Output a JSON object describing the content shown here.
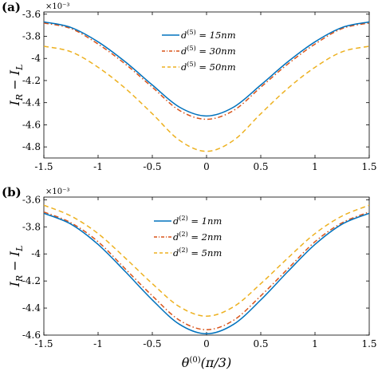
{
  "chart_data": [
    {
      "type": "line",
      "panel_label": "(a)",
      "exponent_label": "×10⁻³",
      "xlabel": "",
      "ylabel": "I_R − I_L",
      "xlim": [
        -1.5,
        1.5
      ],
      "ylim": [
        -4.9,
        -3.58
      ],
      "xticks": [
        "-1.5",
        "-1",
        "-0.5",
        "0",
        "0.5",
        "1",
        "1.5"
      ],
      "yticks": [
        "-3.6",
        "-3.8",
        "-4",
        "-4.2",
        "-4.4",
        "-4.6",
        "-4.8"
      ],
      "ytick_values": [
        -3.6,
        -3.8,
        -4.0,
        -4.2,
        -4.4,
        -4.6,
        -4.8
      ],
      "legend_position": "top-center",
      "grid": false,
      "x": [
        -1.5,
        -1.25,
        -1.0,
        -0.75,
        -0.5,
        -0.25,
        0.0,
        0.25,
        0.5,
        0.75,
        1.0,
        1.25,
        1.5
      ],
      "series": [
        {
          "name": "d^(5) = 15nm",
          "color": "#0072BD",
          "style": "solid",
          "values": [
            -3.67,
            -3.72,
            -3.85,
            -4.03,
            -4.24,
            -4.44,
            -4.52,
            -4.44,
            -4.24,
            -4.03,
            -3.85,
            -3.72,
            -3.67
          ]
        },
        {
          "name": "d^(5) = 30nm",
          "color": "#D95319",
          "style": "dashdot",
          "values": [
            -3.68,
            -3.73,
            -3.87,
            -4.05,
            -4.26,
            -4.47,
            -4.55,
            -4.47,
            -4.26,
            -4.05,
            -3.87,
            -3.73,
            -3.68
          ]
        },
        {
          "name": "d^(5) = 50nm",
          "color": "#EDB120",
          "style": "dashed",
          "values": [
            -3.89,
            -3.94,
            -4.08,
            -4.27,
            -4.5,
            -4.74,
            -4.84,
            -4.74,
            -4.5,
            -4.27,
            -4.08,
            -3.94,
            -3.89
          ]
        }
      ]
    },
    {
      "type": "line",
      "panel_label": "(b)",
      "exponent_label": "×10⁻³",
      "xlabel": "θ^(0) (π/3)",
      "ylabel": "I_R − I_L",
      "xlim": [
        -1.5,
        1.5
      ],
      "ylim": [
        -4.6,
        -3.58
      ],
      "xticks": [
        "-1.5",
        "-1",
        "-0.5",
        "0",
        "0.5",
        "1",
        "1.5"
      ],
      "yticks": [
        "-3.6",
        "-3.8",
        "-4",
        "-4.2",
        "-4.4",
        "-4.6"
      ],
      "ytick_values": [
        -3.6,
        -3.8,
        -4.0,
        -4.2,
        -4.4,
        -4.6
      ],
      "legend_position": "top-center",
      "grid": false,
      "x": [
        -1.5,
        -1.25,
        -1.0,
        -0.75,
        -0.5,
        -0.25,
        0.0,
        0.25,
        0.5,
        0.75,
        1.0,
        1.25,
        1.5
      ],
      "series": [
        {
          "name": "d^(2) = 1nm",
          "color": "#0072BD",
          "style": "solid",
          "values": [
            -3.7,
            -3.78,
            -3.93,
            -4.13,
            -4.34,
            -4.52,
            -4.59,
            -4.52,
            -4.34,
            -4.13,
            -3.93,
            -3.78,
            -3.7
          ]
        },
        {
          "name": "d^(2) = 2nm",
          "color": "#D95319",
          "style": "dashdot",
          "values": [
            -3.69,
            -3.77,
            -3.91,
            -4.11,
            -4.31,
            -4.49,
            -4.56,
            -4.49,
            -4.31,
            -4.11,
            -3.91,
            -3.77,
            -3.69
          ]
        },
        {
          "name": "d^(2) = 5nm",
          "color": "#EDB120",
          "style": "dashed",
          "values": [
            -3.64,
            -3.72,
            -3.85,
            -4.03,
            -4.22,
            -4.39,
            -4.46,
            -4.39,
            -4.22,
            -4.03,
            -3.85,
            -3.72,
            -3.64
          ]
        }
      ]
    }
  ]
}
